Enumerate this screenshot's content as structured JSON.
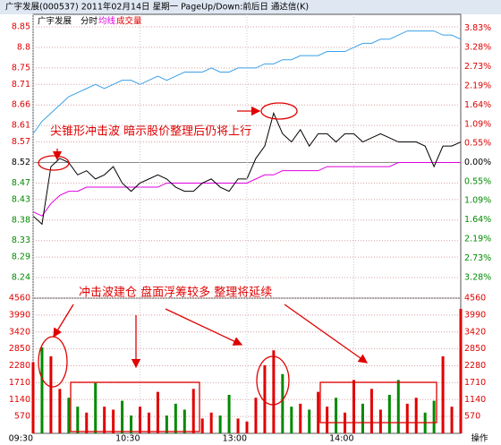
{
  "header": {
    "title": "广宇发展(000537) 2011年02月14日 星期一 PageUp/Down:前后日 通达信(K)"
  },
  "footer": {
    "button": "操作"
  },
  "chart_data": [
    {
      "type": "line",
      "title": "广宇发展",
      "x": [
        0,
        5,
        10,
        15,
        20,
        25,
        30,
        35,
        40,
        45,
        50,
        55,
        60,
        65,
        70,
        75,
        80,
        85,
        90,
        95,
        100,
        105,
        110,
        115,
        120,
        125,
        130,
        135,
        140,
        145,
        150,
        155,
        160,
        165,
        170,
        175,
        180,
        185,
        190,
        195,
        200,
        205,
        210,
        215,
        220,
        225,
        230,
        235,
        240
      ],
      "xlim": [
        0,
        240
      ],
      "series": [
        {
          "name": "分时",
          "color": "#000000",
          "values": [
            8.39,
            8.37,
            8.51,
            8.53,
            8.52,
            8.49,
            8.5,
            8.48,
            8.49,
            8.51,
            8.47,
            8.45,
            8.47,
            8.48,
            8.49,
            8.48,
            8.46,
            8.45,
            8.45,
            8.47,
            8.48,
            8.46,
            8.45,
            8.48,
            8.48,
            8.53,
            8.56,
            8.64,
            8.59,
            8.57,
            8.6,
            8.56,
            8.59,
            8.59,
            8.57,
            8.59,
            8.59,
            8.57,
            8.58,
            8.59,
            8.58,
            8.57,
            8.57,
            8.57,
            8.56,
            8.51,
            8.56,
            8.56,
            8.57
          ]
        },
        {
          "name": "均线",
          "color": "#e000e0",
          "values": [
            8.4,
            8.39,
            8.42,
            8.44,
            8.45,
            8.45,
            8.46,
            8.46,
            8.46,
            8.46,
            8.46,
            8.46,
            8.46,
            8.46,
            8.46,
            8.47,
            8.47,
            8.47,
            8.47,
            8.47,
            8.47,
            8.47,
            8.47,
            8.47,
            8.47,
            8.48,
            8.49,
            8.49,
            8.5,
            8.5,
            8.5,
            8.5,
            8.5,
            8.51,
            8.51,
            8.51,
            8.51,
            8.51,
            8.51,
            8.51,
            8.51,
            8.52,
            8.52,
            8.52,
            8.52,
            8.52,
            8.52,
            8.52,
            8.52
          ]
        },
        {
          "color": "#3aa0e8",
          "values": [
            8.59,
            8.62,
            8.64,
            8.66,
            8.68,
            8.69,
            8.7,
            8.71,
            8.7,
            8.71,
            8.72,
            8.72,
            8.71,
            8.72,
            8.73,
            8.72,
            8.73,
            8.74,
            8.74,
            8.74,
            8.75,
            8.74,
            8.74,
            8.75,
            8.75,
            8.75,
            8.76,
            8.76,
            8.77,
            8.77,
            8.78,
            8.78,
            8.78,
            8.79,
            8.79,
            8.79,
            8.8,
            8.81,
            8.81,
            8.82,
            8.82,
            8.83,
            8.84,
            8.84,
            8.84,
            8.84,
            8.83,
            8.83,
            8.82
          ]
        }
      ],
      "ylim": [
        8.19,
        8.85
      ],
      "yticks": [
        8.85,
        8.8,
        8.75,
        8.71,
        8.66,
        8.61,
        8.57,
        8.52,
        8.47,
        8.43,
        8.38,
        8.33,
        8.29,
        8.24
      ],
      "y2lim": [
        -3.87,
        3.87
      ],
      "y2ticks": [
        {
          "value": 3.83,
          "label": "3.83%"
        },
        {
          "value": 3.28,
          "label": "3.28%"
        },
        {
          "value": 2.73,
          "label": "2.73%"
        },
        {
          "value": 2.19,
          "label": "2.19%"
        },
        {
          "value": 1.64,
          "label": "1.64%"
        },
        {
          "value": 1.09,
          "label": "1.09%"
        },
        {
          "value": 0.55,
          "label": "0.55%"
        },
        {
          "value": 0,
          "label": "0.00%"
        },
        {
          "value": -0.55,
          "label": "0.55%"
        },
        {
          "value": -1.09,
          "label": "1.09%"
        },
        {
          "value": -1.64,
          "label": "1.64%"
        },
        {
          "value": -2.19,
          "label": "2.19%"
        },
        {
          "value": -2.73,
          "label": "2.73%"
        },
        {
          "value": -3.28,
          "label": "3.28%"
        }
      ],
      "up_color": "#e00000",
      "down_color": "#008a00",
      "grid": true,
      "annotations": [
        "尖锥形冲击波  暗示股价整理后仍将上行"
      ]
    },
    {
      "type": "bar",
      "x": [
        0,
        5,
        10,
        15,
        20,
        25,
        30,
        35,
        40,
        45,
        50,
        55,
        60,
        65,
        70,
        75,
        80,
        85,
        90,
        95,
        100,
        105,
        110,
        115,
        120,
        125,
        130,
        135,
        140,
        145,
        150,
        155,
        160,
        165,
        170,
        175,
        180,
        185,
        190,
        195,
        200,
        205,
        210,
        215,
        220,
        225,
        230,
        235,
        240
      ],
      "xlim": [
        0,
        240
      ],
      "xticks": [
        {
          "value": 0,
          "label": "09:30"
        },
        {
          "value": 60,
          "label": "10:30"
        },
        {
          "value": 120,
          "label": "13:00"
        },
        {
          "value": 180,
          "label": "14:00"
        }
      ],
      "series": [
        {
          "name": "成交量",
          "color": "#e00000",
          "values": [
            2400,
            2900,
            2600,
            1500,
            1200,
            900,
            700,
            1700,
            900,
            800,
            1100,
            600,
            900,
            700,
            1400,
            600,
            1000,
            800,
            1500,
            500,
            700,
            600,
            1300,
            500,
            400,
            1200,
            2300,
            2800,
            2000,
            900,
            1000,
            800,
            1400,
            900,
            1200,
            700,
            1800,
            1000,
            1500,
            800,
            1300,
            1800,
            1000,
            1200,
            700,
            1100,
            2600,
            900,
            4200
          ]
        }
      ],
      "ylim": [
        0,
        4560
      ],
      "yticks": [
        4560,
        3990,
        3420,
        2850,
        2280,
        1710,
        1140,
        570
      ],
      "up_color": "#e00000",
      "down_color": "#008a00",
      "grid": true,
      "annotations": [
        "冲击波建仓  盘面浮筹较多  整理将延续"
      ]
    }
  ]
}
